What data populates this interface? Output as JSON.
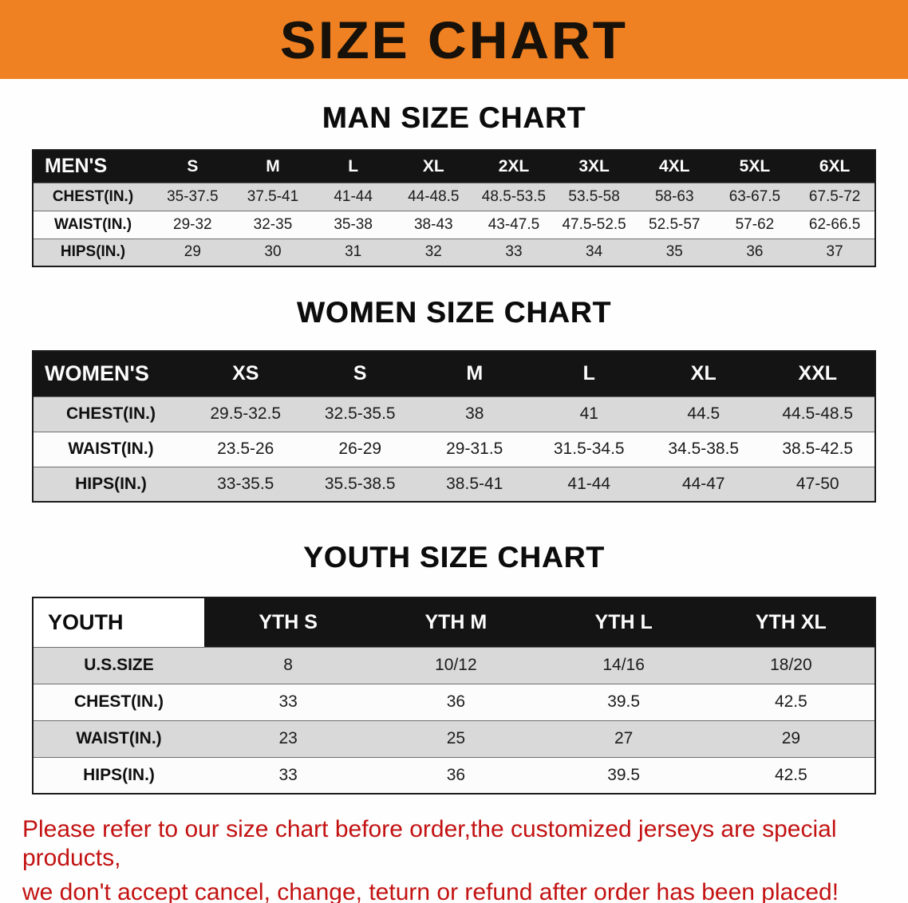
{
  "banner": {
    "title": "SIZE CHART"
  },
  "sections": [
    {
      "title": "MAN SIZE CHART",
      "corner": "MEN'S",
      "columns": [
        "S",
        "M",
        "L",
        "XL",
        "2XL",
        "3XL",
        "4XL",
        "5XL",
        "6XL"
      ],
      "rows": [
        {
          "label": "CHEST(IN.)",
          "values": [
            "35-37.5",
            "37.5-41",
            "41-44",
            "44-48.5",
            "48.5-53.5",
            "53.5-58",
            "58-63",
            "63-67.5",
            "67.5-72"
          ]
        },
        {
          "label": "WAIST(IN.)",
          "values": [
            "29-32",
            "32-35",
            "35-38",
            "38-43",
            "43-47.5",
            "47.5-52.5",
            "52.5-57",
            "57-62",
            "62-66.5"
          ]
        },
        {
          "label": "HIPS(IN.)",
          "values": [
            "29",
            "30",
            "31",
            "32",
            "33",
            "34",
            "35",
            "36",
            "37"
          ]
        }
      ]
    },
    {
      "title": "WOMEN SIZE CHART",
      "corner": "WOMEN'S",
      "columns": [
        "XS",
        "S",
        "M",
        "L",
        "XL",
        "XXL"
      ],
      "rows": [
        {
          "label": "CHEST(IN.)",
          "values": [
            "29.5-32.5",
            "32.5-35.5",
            "38",
            "41",
            "44.5",
            "44.5-48.5"
          ]
        },
        {
          "label": "WAIST(IN.)",
          "values": [
            "23.5-26",
            "26-29",
            "29-31.5",
            "31.5-34.5",
            "34.5-38.5",
            "38.5-42.5"
          ]
        },
        {
          "label": "HIPS(IN.)",
          "values": [
            "33-35.5",
            "35.5-38.5",
            "38.5-41",
            "41-44",
            "44-47",
            "47-50"
          ]
        }
      ]
    },
    {
      "title": "YOUTH SIZE CHART",
      "corner": "YOUTH",
      "columns": [
        "YTH S",
        "YTH M",
        "YTH L",
        "YTH XL"
      ],
      "rows": [
        {
          "label": "U.S.SIZE",
          "values": [
            "8",
            "10/12",
            "14/16",
            "18/20"
          ]
        },
        {
          "label": "CHEST(IN.)",
          "values": [
            "33",
            "36",
            "39.5",
            "42.5"
          ]
        },
        {
          "label": "WAIST(IN.)",
          "values": [
            "23",
            "25",
            "27",
            "29"
          ]
        },
        {
          "label": "HIPS(IN.)",
          "values": [
            "33",
            "36",
            "39.5",
            "42.5"
          ]
        }
      ]
    }
  ],
  "footer": {
    "line1": "Please refer to our size chart before order,the customized jerseys are special products,",
    "line2": "we don't accept cancel, change, teturn or refund after order has been placed!"
  },
  "colors": {
    "banner_bg": "#f08122",
    "header_row_bg": "#141414",
    "alt_row_bg": "#d9d9d9",
    "footer_text": "#c31212"
  }
}
